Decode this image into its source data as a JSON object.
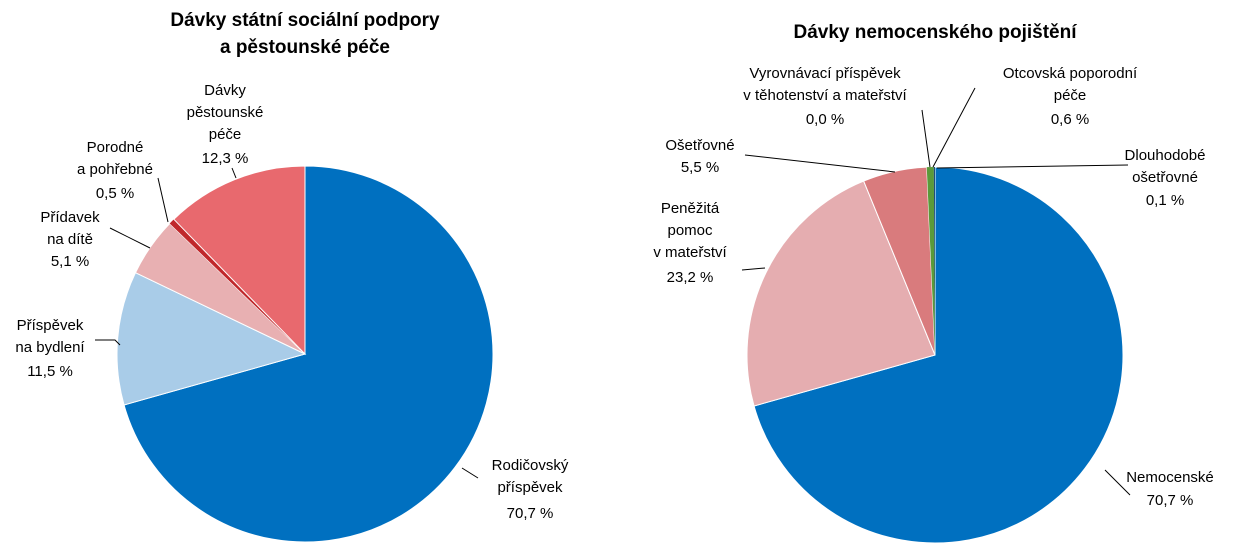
{
  "chart_data": [
    {
      "type": "pie",
      "title": "Dávky státní sociální podpory\na pěstounské péče",
      "categories": [
        "Rodičovský\npříspěvek",
        "Příspěvek\nna bydlení",
        "Přídavek\nna dítě",
        "Porodné\na pohřebné",
        "Dávky\npěstounské\npéče"
      ],
      "values": [
        70.7,
        11.5,
        5.1,
        0.5,
        12.3
      ],
      "value_labels": [
        "70,7 %",
        "11,5 %",
        "5,1 %",
        "0,5 %",
        "12,3 %"
      ],
      "colors": [
        "#0070c0",
        "#a9cce8",
        "#e8b0b2",
        "#c0282b",
        "#e8696e"
      ]
    },
    {
      "type": "pie",
      "title": "Dávky nemocenského pojištění",
      "categories": [
        "Nemocenské",
        "Peněžitá\npomoc\nv mateřství",
        "Ošetřovné",
        "Vyrovnávací příspěvek\nv těhotenství a mateřství",
        "Otcovská poporodní\npéče",
        "Dlouhodobé\nošetřovné"
      ],
      "values": [
        70.7,
        23.2,
        5.5,
        0.0,
        0.6,
        0.1
      ],
      "value_labels": [
        "70,7 %",
        "23,2 %",
        "5,5 %",
        "0,0 %",
        "0,6 %",
        "0,1 %"
      ],
      "colors": [
        "#0070c0",
        "#e5adb0",
        "#d97b7d",
        "#b0b0b0",
        "#5a9a3a",
        "#1f4e79"
      ]
    }
  ]
}
